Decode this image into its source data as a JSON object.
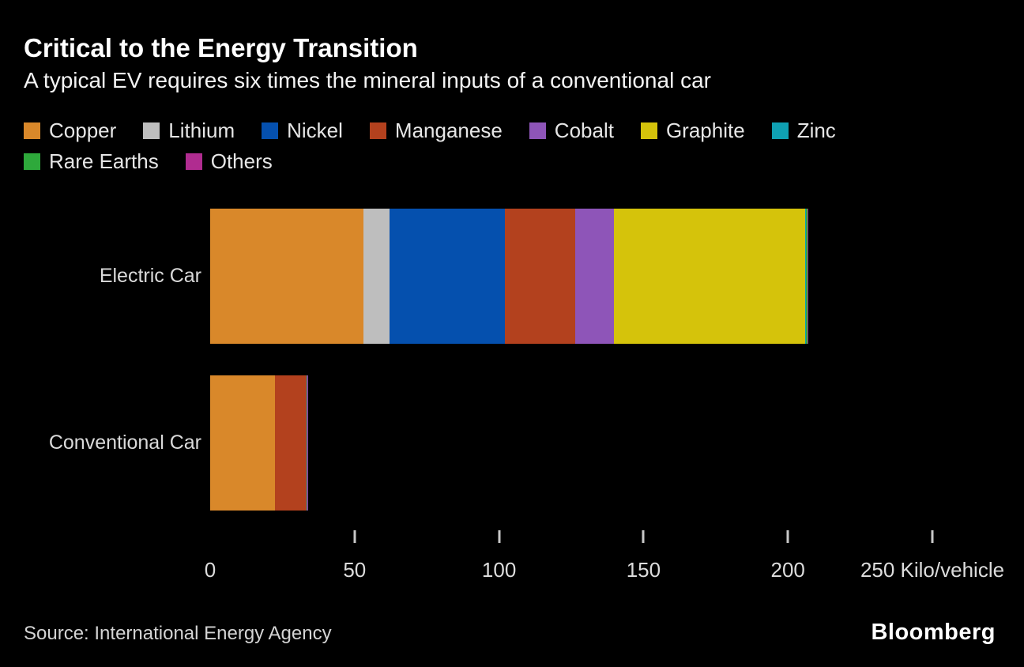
{
  "header": {
    "title": "Critical to the Energy Transition",
    "subtitle": "A typical EV requires six times the mineral inputs of a conventional car"
  },
  "legend": {
    "items": [
      {
        "label": "Copper",
        "color": "#d9882a"
      },
      {
        "label": "Lithium",
        "color": "#bebebe"
      },
      {
        "label": "Nickel",
        "color": "#0550ae"
      },
      {
        "label": "Manganese",
        "color": "#b3411e"
      },
      {
        "label": "Cobalt",
        "color": "#8e55b8"
      },
      {
        "label": "Graphite",
        "color": "#d5c30b"
      },
      {
        "label": "Zinc",
        "color": "#0fa0b2"
      },
      {
        "label": "Rare Earths",
        "color": "#2ea93b"
      },
      {
        "label": "Others",
        "color": "#b02c90"
      }
    ]
  },
  "chart_data": {
    "type": "bar",
    "orientation": "horizontal",
    "stacked": true,
    "title": "Critical to the Energy Transition",
    "subtitle": "A typical EV requires six times the mineral inputs of a conventional car",
    "categories": [
      "Electric Car",
      "Conventional Car"
    ],
    "series": [
      {
        "name": "Copper",
        "color": "#d9882a",
        "values": [
          53.2,
          22.3
        ]
      },
      {
        "name": "Lithium",
        "color": "#bebebe",
        "values": [
          8.9,
          0
        ]
      },
      {
        "name": "Nickel",
        "color": "#0550ae",
        "values": [
          39.9,
          0
        ]
      },
      {
        "name": "Manganese",
        "color": "#b3411e",
        "values": [
          24.5,
          11.2
        ]
      },
      {
        "name": "Cobalt",
        "color": "#8e55b8",
        "values": [
          13.3,
          0
        ]
      },
      {
        "name": "Graphite",
        "color": "#d5c30b",
        "values": [
          66.3,
          0
        ]
      },
      {
        "name": "Zinc",
        "color": "#0fa0b2",
        "values": [
          0.1,
          0.1
        ]
      },
      {
        "name": "Rare Earths",
        "color": "#2ea93b",
        "values": [
          0.5,
          0
        ]
      },
      {
        "name": "Others",
        "color": "#b02c90",
        "values": [
          0.3,
          0.3
        ]
      }
    ],
    "x_ticks": [
      0,
      50,
      100,
      150,
      200,
      250
    ],
    "xlim": [
      0,
      250
    ],
    "unit_label": "Kilo/vehicle",
    "legend_position": "top",
    "grid": false
  },
  "footer": {
    "source": "Source: International Energy Agency",
    "logo": "Bloomberg"
  }
}
